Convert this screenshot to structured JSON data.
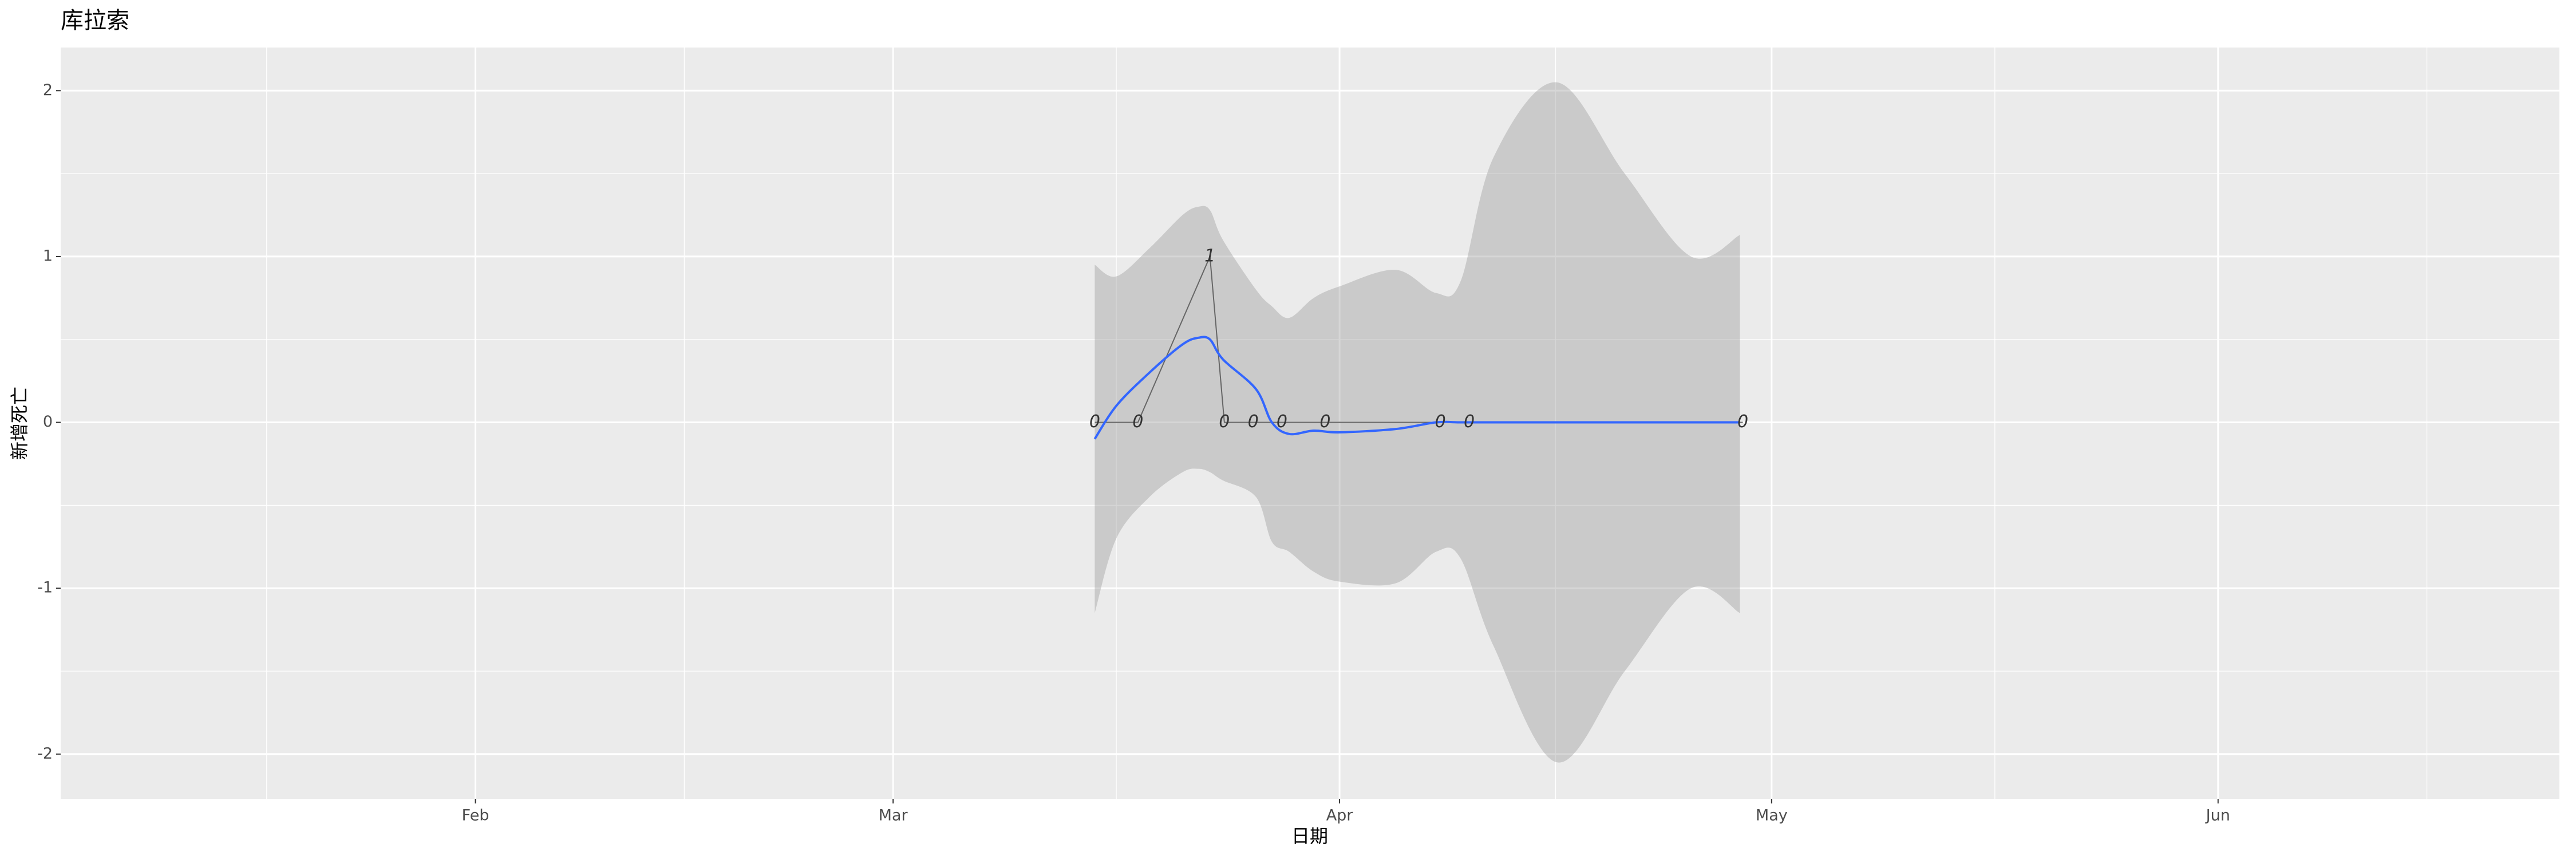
{
  "chart_data": {
    "type": "line",
    "title": "库拉索",
    "x_label": "日期",
    "y_label": "新增死亡",
    "x": [
      75,
      78,
      83,
      84,
      86,
      88,
      91,
      99,
      101,
      120
    ],
    "values": [
      0,
      0,
      1,
      0,
      0,
      0,
      0,
      0,
      0,
      0
    ],
    "color": "#666666",
    "smooth": {
      "color": "#3366FF",
      "band_color": "#999999",
      "x": [
        75,
        76.5,
        78.8,
        81.1,
        82.2,
        83,
        83.9,
        86.2,
        87.3,
        88.5,
        90.2,
        92,
        95.9,
        98.7,
        100.4,
        102.7,
        107.1,
        111.8,
        116.4,
        119.8
      ],
      "values": [
        -0.1,
        0.1,
        0.3,
        0.47,
        0.51,
        0.5,
        0.38,
        0.2,
        0,
        -0.07,
        -0.05,
        -0.06,
        -0.04,
        0,
        0,
        0,
        0,
        0,
        0,
        0
      ],
      "lower": [
        -1.15,
        -0.7,
        -0.45,
        -0.3,
        -0.28,
        -0.3,
        -0.35,
        -0.45,
        -0.72,
        -0.78,
        -0.9,
        -0.96,
        -0.97,
        -0.78,
        -0.82,
        -1.35,
        -2.05,
        -1.5,
        -1,
        -1.15
      ],
      "upper": [
        0.95,
        0.88,
        1.05,
        1.25,
        1.3,
        1.28,
        1.1,
        0.8,
        0.7,
        0.63,
        0.75,
        0.82,
        0.92,
        0.78,
        0.85,
        1.6,
        2.05,
        1.5,
        1,
        1.13
      ]
    },
    "xlim": [
      3.2,
      176.7
    ],
    "xticks": [
      {
        "value": 32,
        "label": "Feb"
      },
      {
        "value": 61,
        "label": "Mar"
      },
      {
        "value": 92,
        "label": "Apr"
      },
      {
        "value": 122,
        "label": "May"
      },
      {
        "value": 153,
        "label": "Jun"
      }
    ],
    "ylim": [
      -2.27,
      2.26
    ],
    "yticks": [
      -2,
      -1,
      0,
      1,
      2
    ],
    "grid": true
  }
}
